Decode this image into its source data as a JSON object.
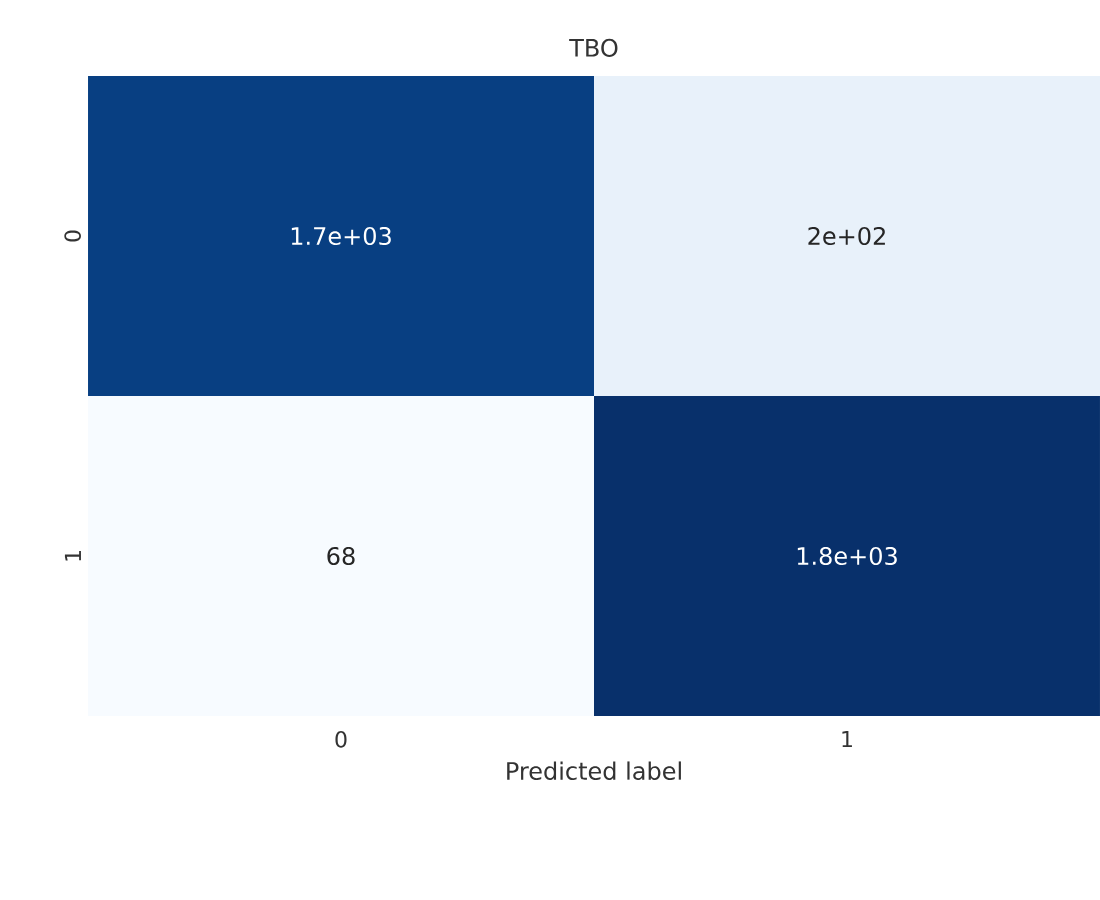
{
  "chart_data": {
    "type": "heatmap",
    "title": "TBO",
    "xlabel": "Predicted label",
    "categories": [
      "0",
      "1"
    ],
    "y_categories": [
      "0",
      "1"
    ],
    "cells": [
      [
        1700,
        200
      ],
      [
        68,
        1800
      ]
    ],
    "cell_labels": [
      [
        "1.7e+03",
        "2e+02"
      ],
      [
        "68",
        "1.8e+03"
      ]
    ]
  }
}
